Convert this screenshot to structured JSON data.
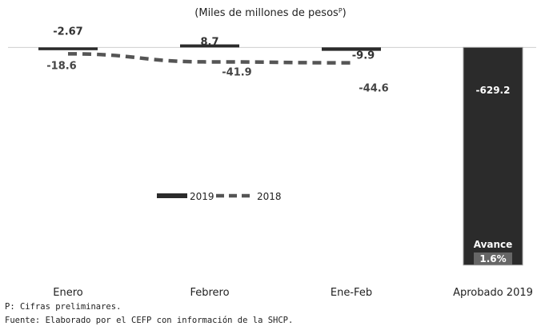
{
  "chart_data": {
    "type": "bar",
    "subtitle": "(Miles de millones de pesos",
    "subtitle_sup": "P",
    "subtitle_close": ")",
    "categories": [
      "Enero",
      "Febrero",
      "Ene-Feb",
      "Aprobado 2019"
    ],
    "series": [
      {
        "name": "2019",
        "type": "bar",
        "color": "#2b2b2b",
        "values": [
          -2.67,
          8.7,
          -9.9,
          -629.2
        ],
        "labels": [
          "-2.67",
          "8.7",
          "-9.9",
          "-629.2"
        ]
      },
      {
        "name": "2018",
        "type": "line",
        "style": "dashed",
        "color": "#555555",
        "values": [
          -18.6,
          -41.9,
          -44.6,
          null
        ],
        "labels": [
          "-18.6",
          "-41.9",
          "-44.6",
          ""
        ]
      }
    ],
    "annotation": {
      "title": "Avance",
      "value": "1.6%"
    },
    "ylim": [
      -660,
      10
    ],
    "grid": false,
    "legend": "center"
  },
  "notes": {
    "preliminary": "P: Cifras preliminares.",
    "source": "Fuente: Elaborado por el CEFP con información de la SHCP."
  }
}
